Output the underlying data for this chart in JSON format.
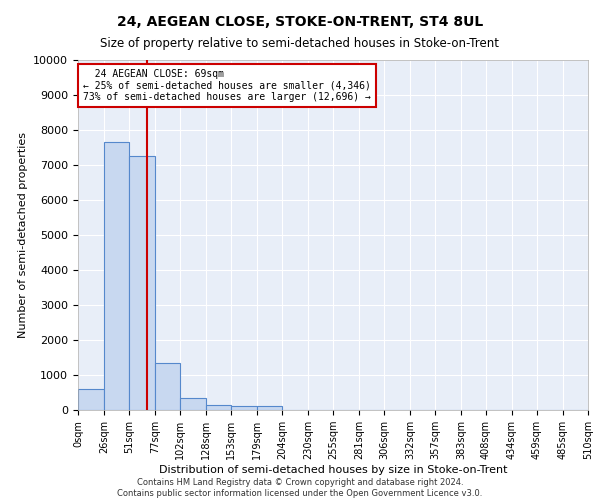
{
  "title": "24, AEGEAN CLOSE, STOKE-ON-TRENT, ST4 8UL",
  "subtitle": "Size of property relative to semi-detached houses in Stoke-on-Trent",
  "xlabel": "Distribution of semi-detached houses by size in Stoke-on-Trent",
  "ylabel": "Number of semi-detached properties",
  "footer": "Contains HM Land Registry data © Crown copyright and database right 2024.\nContains public sector information licensed under the Open Government Licence v3.0.",
  "bin_labels": [
    "0sqm",
    "26sqm",
    "51sqm",
    "77sqm",
    "102sqm",
    "128sqm",
    "153sqm",
    "179sqm",
    "204sqm",
    "230sqm",
    "255sqm",
    "281sqm",
    "306sqm",
    "332sqm",
    "357sqm",
    "383sqm",
    "408sqm",
    "434sqm",
    "459sqm",
    "485sqm",
    "510sqm"
  ],
  "bar_values": [
    600,
    7650,
    7250,
    1340,
    340,
    155,
    120,
    115,
    0,
    0,
    0,
    0,
    0,
    0,
    0,
    0,
    0,
    0,
    0,
    0
  ],
  "bar_color": "#c8d8f0",
  "bar_edge_color": "#5588cc",
  "property_size": 69,
  "property_label": "24 AEGEAN CLOSE: 69sqm",
  "smaller_pct": 25,
  "smaller_count": 4346,
  "larger_pct": 73,
  "larger_count": 12696,
  "vline_color": "#cc0000",
  "ylim": [
    0,
    10000
  ],
  "yticks": [
    0,
    1000,
    2000,
    3000,
    4000,
    5000,
    6000,
    7000,
    8000,
    9000,
    10000
  ],
  "bin_edges": [
    0,
    26,
    51,
    77,
    102,
    128,
    153,
    179,
    204,
    230,
    255,
    281,
    306,
    332,
    357,
    383,
    408,
    434,
    459,
    485,
    510
  ],
  "plot_bg_color": "#e8eef8"
}
